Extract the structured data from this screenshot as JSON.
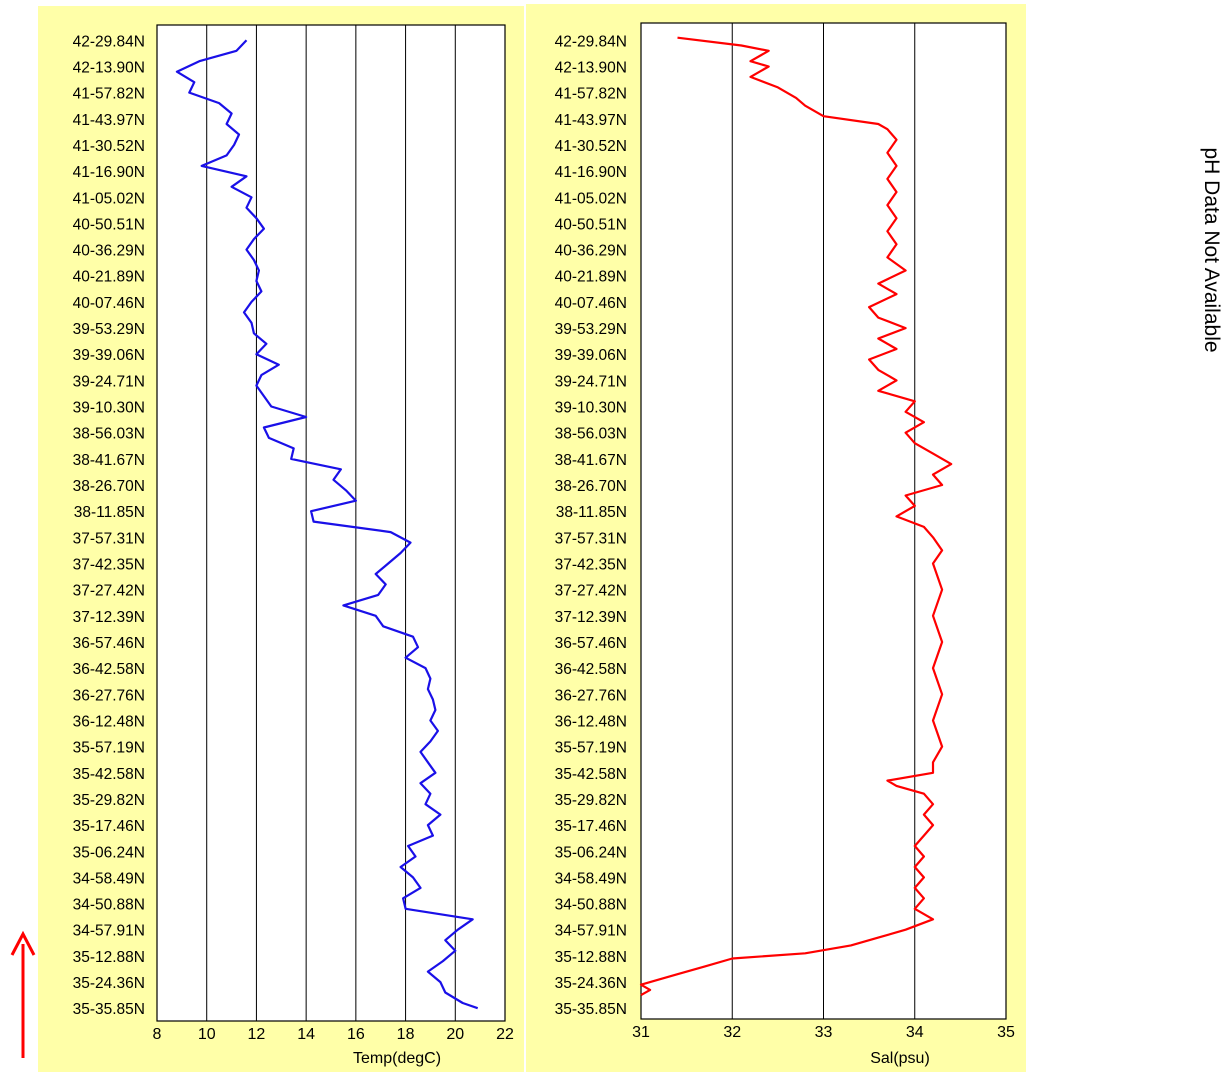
{
  "side_note": "pH Data Not Available",
  "colors": {
    "panel_bg": "#ffffa8",
    "temp_line": "#1a10e8",
    "sal_line": "#ff0000",
    "grid": "#000000",
    "arrow": "#ff0000"
  },
  "icons": {
    "direction_arrow": "up-arrow-icon"
  },
  "chart_data": [
    {
      "type": "line",
      "orientation": "vertical-profile",
      "xlabel": "Temp(degC)",
      "xlim": [
        8,
        22
      ],
      "xticks": [
        8,
        10,
        12,
        14,
        16,
        18,
        20,
        22
      ],
      "grid": "vertical",
      "y_tick_labels": [
        "42-29.84N",
        "42-13.90N",
        "41-57.82N",
        "41-43.97N",
        "41-30.52N",
        "41-16.90N",
        "41-05.02N",
        "40-50.51N",
        "40-36.29N",
        "40-21.89N",
        "40-07.46N",
        "39-53.29N",
        "39-39.06N",
        "39-24.71N",
        "39-10.30N",
        "38-56.03N",
        "38-41.67N",
        "38-26.70N",
        "38-11.85N",
        "37-57.31N",
        "37-42.35N",
        "37-27.42N",
        "37-12.39N",
        "36-57.46N",
        "36-42.58N",
        "36-27.76N",
        "36-12.48N",
        "35-57.19N",
        "35-42.58N",
        "35-29.82N",
        "35-17.46N",
        "35-06.24N",
        "34-58.49N",
        "34-50.88N",
        "34-57.91N",
        "35-12.88N",
        "35-24.36N",
        "35-35.85N"
      ],
      "series": [
        {
          "y_index": [
            0,
            0.4,
            0.8,
            1.2,
            1.6,
            2.0,
            2.4,
            2.8,
            3.2,
            3.6,
            4.0,
            4.4,
            4.8,
            5.2,
            5.6,
            6.0,
            6.4,
            6.8,
            7.2,
            7.6,
            8.0,
            8.4,
            8.8,
            9.2,
            9.6,
            10.0,
            10.4,
            10.8,
            11.2,
            11.6,
            12.0,
            12.4,
            12.8,
            13.2,
            13.6,
            14.0,
            14.4,
            14.8,
            15.2,
            15.6,
            16.0,
            16.4,
            16.8,
            17.2,
            17.6,
            18.0,
            18.4,
            18.8,
            19.2,
            19.6,
            20.0,
            20.4,
            20.8,
            21.2,
            21.6,
            22.0,
            22.4,
            22.8,
            23.2,
            23.6,
            24.0,
            24.4,
            24.8,
            25.2,
            25.6,
            26.0,
            26.4,
            26.8,
            27.2,
            27.6,
            28.0,
            28.4,
            28.8,
            29.2,
            29.6,
            30.0,
            30.4,
            30.8,
            31.2,
            31.6,
            32.0,
            32.4,
            32.8,
            33.2,
            33.6,
            34.0,
            34.4,
            34.8,
            35.2,
            35.6,
            36.0,
            36.4,
            36.8,
            37.0
          ],
          "values": [
            11.6,
            11.2,
            9.7,
            8.8,
            9.5,
            9.3,
            10.5,
            11.0,
            10.8,
            11.3,
            11.1,
            10.8,
            9.8,
            11.6,
            11.0,
            11.8,
            11.6,
            12.0,
            12.3,
            11.9,
            11.6,
            11.9,
            12.1,
            12.0,
            12.2,
            11.8,
            11.5,
            11.8,
            11.9,
            12.4,
            12.0,
            12.9,
            12.2,
            12.0,
            12.3,
            12.6,
            14.0,
            12.3,
            12.5,
            13.5,
            13.4,
            15.4,
            15.1,
            15.6,
            16.0,
            14.2,
            14.3,
            17.4,
            18.2,
            17.8,
            17.3,
            16.8,
            17.2,
            16.9,
            15.5,
            16.8,
            17.1,
            18.3,
            18.5,
            18.0,
            18.8,
            19.0,
            18.9,
            19.1,
            19.2,
            19.0,
            19.3,
            19.0,
            18.6,
            18.9,
            19.2,
            18.6,
            19.0,
            18.8,
            19.4,
            18.9,
            19.1,
            18.1,
            18.4,
            17.8,
            18.3,
            18.6,
            17.9,
            18.0,
            20.7,
            20.1,
            19.6,
            20.0,
            19.5,
            18.9,
            19.4,
            19.6,
            20.3,
            20.9
          ]
        }
      ]
    },
    {
      "type": "line",
      "orientation": "vertical-profile",
      "xlabel": "Sal(psu)",
      "xlim": [
        31,
        35
      ],
      "xticks": [
        31,
        32,
        33,
        34,
        35
      ],
      "grid": "vertical",
      "y_tick_labels": [
        "42-29.84N",
        "42-13.90N",
        "41-57.82N",
        "41-43.97N",
        "41-30.52N",
        "41-16.90N",
        "41-05.02N",
        "40-50.51N",
        "40-36.29N",
        "40-21.89N",
        "40-07.46N",
        "39-53.29N",
        "39-39.06N",
        "39-24.71N",
        "39-10.30N",
        "38-56.03N",
        "38-41.67N",
        "38-26.70N",
        "38-11.85N",
        "37-57.31N",
        "37-42.35N",
        "37-27.42N",
        "37-12.39N",
        "36-57.46N",
        "36-42.58N",
        "36-27.76N",
        "36-12.48N",
        "35-57.19N",
        "35-42.58N",
        "35-29.82N",
        "35-17.46N",
        "35-06.24N",
        "34-58.49N",
        "34-50.88N",
        "34-57.91N",
        "35-12.88N",
        "35-24.36N",
        "35-35.85N"
      ],
      "series": [
        {
          "y_index": [
            -0.1,
            0.2,
            0.4,
            0.8,
            1.0,
            1.4,
            1.8,
            2.2,
            2.5,
            2.9,
            3.2,
            3.4,
            3.8,
            4.3,
            4.8,
            5.3,
            5.8,
            6.3,
            6.8,
            7.3,
            7.8,
            8.3,
            8.8,
            9.3,
            9.7,
            10.2,
            10.6,
            11.0,
            11.4,
            11.8,
            12.2,
            12.6,
            13.0,
            13.4,
            13.8,
            14.2,
            14.6,
            15.0,
            15.4,
            15.8,
            16.2,
            16.6,
            17.0,
            17.4,
            17.8,
            18.2,
            18.6,
            19.0,
            19.5,
            20.0,
            21.0,
            22.0,
            23.0,
            24.0,
            25.0,
            26.0,
            27.0,
            27.6,
            28.0,
            28.3,
            28.5,
            28.8,
            29.2,
            29.6,
            30.0,
            30.4,
            30.8,
            31.2,
            31.6,
            32.0,
            32.4,
            32.8,
            33.2,
            33.6,
            34.0,
            34.3,
            34.6,
            34.9,
            35.1,
            35.4,
            35.7,
            35.9,
            36.1,
            36.3,
            36.5
          ],
          "values": [
            31.4,
            32.1,
            32.4,
            32.2,
            32.4,
            32.2,
            32.5,
            32.7,
            32.8,
            33.0,
            33.6,
            33.7,
            33.8,
            33.7,
            33.8,
            33.7,
            33.8,
            33.7,
            33.8,
            33.7,
            33.8,
            33.7,
            33.9,
            33.6,
            33.8,
            33.5,
            33.6,
            33.9,
            33.6,
            33.8,
            33.5,
            33.6,
            33.8,
            33.6,
            34.0,
            33.9,
            34.1,
            33.9,
            34.0,
            34.2,
            34.4,
            34.2,
            34.3,
            33.9,
            34.0,
            33.8,
            34.1,
            34.2,
            34.3,
            34.2,
            34.3,
            34.2,
            34.3,
            34.2,
            34.3,
            34.2,
            34.3,
            34.2,
            34.2,
            33.7,
            33.8,
            34.1,
            34.2,
            34.1,
            34.2,
            34.1,
            34.0,
            34.1,
            34.0,
            34.1,
            34.0,
            34.1,
            34.0,
            34.2,
            33.9,
            33.6,
            33.3,
            32.8,
            32.0,
            31.7,
            31.4,
            31.2,
            31.0,
            31.1,
            31.0
          ]
        }
      ]
    }
  ]
}
